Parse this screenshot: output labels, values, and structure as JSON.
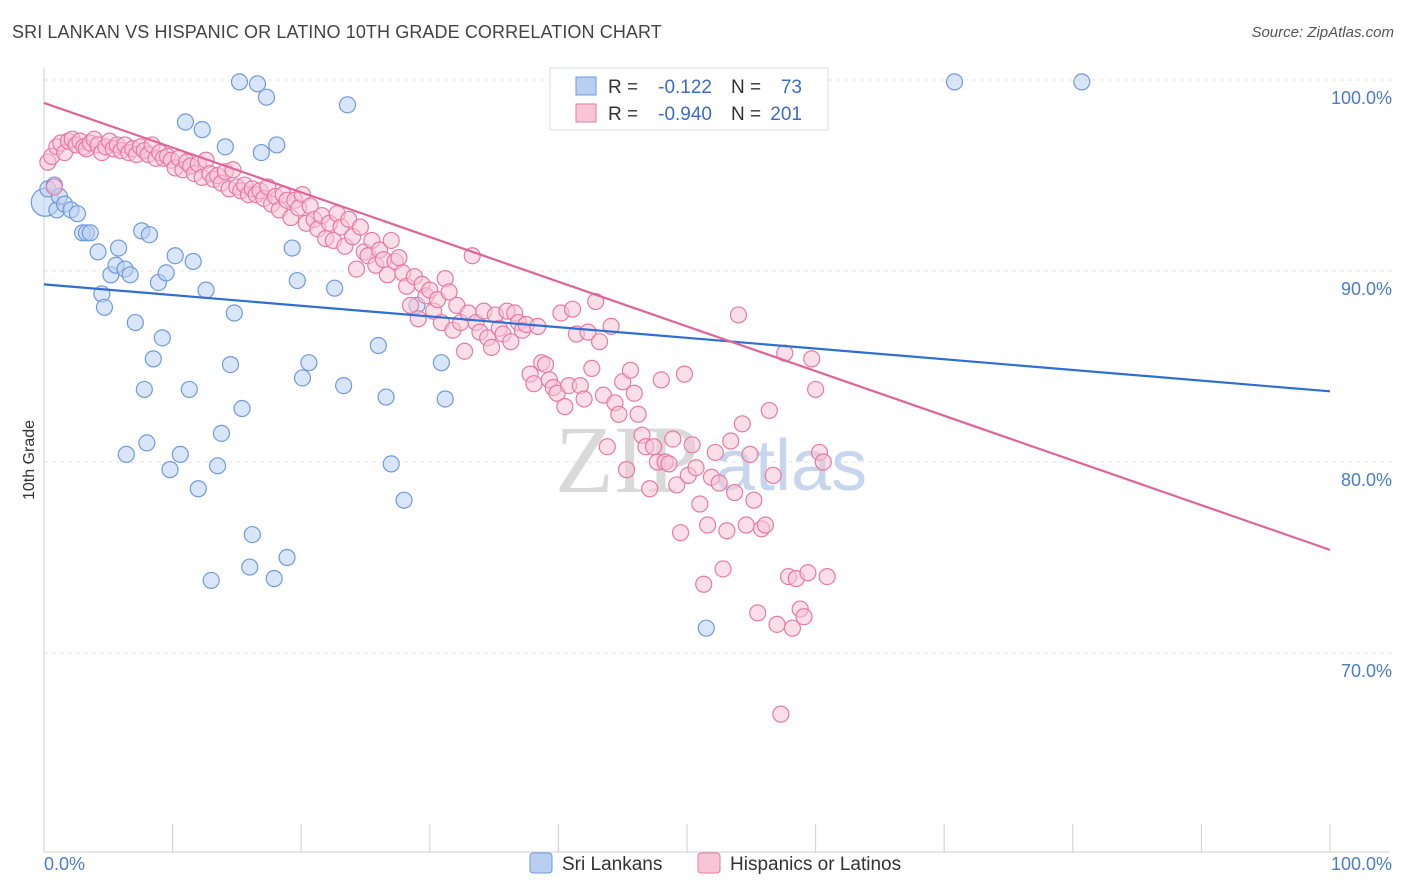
{
  "title": "SRI LANKAN VS HISPANIC OR LATINO 10TH GRADE CORRELATION CHART",
  "source": "Source: ZipAtlas.com",
  "chart_data": {
    "type": "scatter",
    "xlabel": "",
    "ylabel": "10th Grade",
    "xlim": [
      0,
      100
    ],
    "ylim": [
      60,
      102
    ],
    "x_tick_labels": [
      "0.0%",
      "100.0%"
    ],
    "y_ticks": [
      100,
      90,
      80,
      70
    ],
    "y_tick_labels": [
      "100.0%",
      "90.0%",
      "80.0%",
      "70.0%"
    ],
    "watermark": [
      "ZIP",
      "atlas"
    ],
    "legend_stats": [
      {
        "r_label": "R =",
        "r": "-0.122",
        "n_label": "N =",
        "n": "73"
      },
      {
        "r_label": "R =",
        "r": "-0.940",
        "n_label": "N =",
        "n": "201"
      }
    ],
    "series": [
      {
        "name": "Sri Lankans",
        "color": "#6f9ae0",
        "fill": "#b9cff2",
        "trend": {
          "x": [
            0,
            100
          ],
          "y": [
            89.3,
            83.7
          ]
        },
        "points": [
          [
            0.1,
            93.6
          ],
          [
            0.3,
            94.3
          ],
          [
            0.8,
            94.5
          ],
          [
            1.0,
            93.2
          ],
          [
            1.2,
            93.9
          ],
          [
            1.6,
            93.5
          ],
          [
            2.1,
            93.2
          ],
          [
            2.6,
            93.0
          ],
          [
            3.0,
            92.0
          ],
          [
            3.3,
            92.0
          ],
          [
            3.6,
            92.0
          ],
          [
            4.2,
            91.0
          ],
          [
            4.5,
            88.8
          ],
          [
            4.7,
            88.1
          ],
          [
            5.2,
            89.8
          ],
          [
            5.6,
            90.3
          ],
          [
            5.8,
            91.2
          ],
          [
            6.3,
            90.1
          ],
          [
            6.4,
            80.4
          ],
          [
            6.7,
            89.8
          ],
          [
            7.1,
            87.3
          ],
          [
            7.6,
            92.1
          ],
          [
            7.8,
            83.8
          ],
          [
            8.0,
            81.0
          ],
          [
            8.2,
            91.9
          ],
          [
            8.5,
            85.4
          ],
          [
            8.9,
            89.4
          ],
          [
            9.2,
            86.5
          ],
          [
            9.5,
            89.9
          ],
          [
            9.8,
            79.6
          ],
          [
            10.2,
            90.8
          ],
          [
            10.6,
            80.4
          ],
          [
            11.0,
            97.8
          ],
          [
            11.3,
            83.8
          ],
          [
            11.6,
            90.5
          ],
          [
            12.0,
            78.6
          ],
          [
            12.3,
            97.4
          ],
          [
            12.6,
            89.0
          ],
          [
            13.0,
            73.8
          ],
          [
            13.5,
            79.8
          ],
          [
            13.8,
            81.5
          ],
          [
            14.1,
            96.5
          ],
          [
            14.5,
            85.1
          ],
          [
            14.8,
            87.8
          ],
          [
            15.2,
            99.9
          ],
          [
            15.4,
            82.8
          ],
          [
            16.0,
            74.5
          ],
          [
            16.2,
            76.2
          ],
          [
            16.6,
            99.8
          ],
          [
            16.9,
            96.2
          ],
          [
            17.3,
            99.1
          ],
          [
            17.9,
            73.9
          ],
          [
            18.1,
            96.6
          ],
          [
            18.9,
            75.0
          ],
          [
            19.3,
            91.2
          ],
          [
            19.7,
            89.5
          ],
          [
            20.1,
            84.4
          ],
          [
            20.6,
            85.2
          ],
          [
            22.6,
            89.1
          ],
          [
            23.3,
            84.0
          ],
          [
            23.6,
            98.7
          ],
          [
            26.0,
            86.1
          ],
          [
            26.6,
            83.4
          ],
          [
            27.0,
            79.9
          ],
          [
            28.0,
            78.0
          ],
          [
            29.0,
            88.2
          ],
          [
            30.9,
            85.2
          ],
          [
            31.2,
            83.3
          ],
          [
            51.5,
            71.3
          ],
          [
            70.8,
            99.9
          ],
          [
            80.7,
            99.9
          ]
        ]
      },
      {
        "name": "Hispanics or Latinos",
        "color": "#e87aa3",
        "fill": "#f7c5d6",
        "trend": {
          "x": [
            0,
            100
          ],
          "y": [
            98.8,
            75.4
          ]
        },
        "points": [
          [
            0.3,
            95.7
          ],
          [
            0.6,
            96.0
          ],
          [
            0.8,
            94.4
          ],
          [
            1.0,
            96.5
          ],
          [
            1.3,
            96.7
          ],
          [
            1.6,
            96.2
          ],
          [
            1.9,
            96.8
          ],
          [
            2.2,
            96.9
          ],
          [
            2.5,
            96.6
          ],
          [
            2.8,
            96.8
          ],
          [
            3.1,
            96.5
          ],
          [
            3.3,
            96.4
          ],
          [
            3.6,
            96.7
          ],
          [
            3.9,
            96.9
          ],
          [
            4.2,
            96.6
          ],
          [
            4.5,
            96.2
          ],
          [
            4.8,
            96.5
          ],
          [
            5.1,
            96.8
          ],
          [
            5.4,
            96.4
          ],
          [
            5.7,
            96.6
          ],
          [
            6.0,
            96.3
          ],
          [
            6.3,
            96.6
          ],
          [
            6.6,
            96.2
          ],
          [
            6.9,
            96.4
          ],
          [
            7.2,
            96.1
          ],
          [
            7.5,
            96.5
          ],
          [
            7.8,
            96.3
          ],
          [
            8.1,
            96.1
          ],
          [
            8.4,
            96.6
          ],
          [
            8.7,
            95.9
          ],
          [
            9.0,
            96.2
          ],
          [
            9.3,
            95.9
          ],
          [
            9.6,
            96.0
          ],
          [
            9.9,
            95.8
          ],
          [
            10.2,
            95.4
          ],
          [
            10.5,
            95.9
          ],
          [
            10.8,
            95.3
          ],
          [
            11.1,
            95.7
          ],
          [
            11.4,
            95.5
          ],
          [
            11.7,
            95.1
          ],
          [
            12.0,
            95.6
          ],
          [
            12.3,
            94.9
          ],
          [
            12.6,
            95.8
          ],
          [
            12.9,
            95.1
          ],
          [
            13.2,
            94.8
          ],
          [
            13.5,
            95.0
          ],
          [
            13.8,
            94.6
          ],
          [
            14.1,
            95.2
          ],
          [
            14.4,
            94.3
          ],
          [
            14.7,
            95.3
          ],
          [
            15.0,
            94.4
          ],
          [
            15.3,
            94.2
          ],
          [
            15.6,
            94.5
          ],
          [
            15.9,
            94.0
          ],
          [
            16.2,
            94.3
          ],
          [
            16.5,
            94.0
          ],
          [
            16.8,
            94.2
          ],
          [
            17.1,
            93.8
          ],
          [
            17.4,
            94.4
          ],
          [
            17.7,
            93.5
          ],
          [
            18.0,
            93.9
          ],
          [
            18.3,
            93.2
          ],
          [
            18.6,
            94.0
          ],
          [
            18.9,
            93.7
          ],
          [
            19.2,
            92.8
          ],
          [
            19.5,
            93.7
          ],
          [
            19.8,
            93.3
          ],
          [
            20.1,
            94.0
          ],
          [
            20.4,
            92.5
          ],
          [
            20.7,
            93.4
          ],
          [
            21.0,
            92.7
          ],
          [
            21.3,
            92.2
          ],
          [
            21.6,
            92.9
          ],
          [
            21.9,
            91.7
          ],
          [
            22.2,
            92.5
          ],
          [
            22.5,
            91.6
          ],
          [
            22.8,
            93.0
          ],
          [
            23.1,
            92.3
          ],
          [
            23.4,
            91.3
          ],
          [
            23.7,
            92.7
          ],
          [
            24.0,
            91.8
          ],
          [
            24.3,
            90.1
          ],
          [
            24.6,
            92.3
          ],
          [
            24.9,
            91.0
          ],
          [
            25.2,
            90.8
          ],
          [
            25.5,
            91.6
          ],
          [
            25.8,
            90.3
          ],
          [
            26.1,
            91.1
          ],
          [
            26.4,
            90.6
          ],
          [
            26.7,
            89.8
          ],
          [
            27.0,
            91.6
          ],
          [
            27.3,
            90.5
          ],
          [
            27.6,
            90.7
          ],
          [
            27.9,
            89.9
          ],
          [
            28.2,
            89.2
          ],
          [
            28.5,
            88.2
          ],
          [
            28.8,
            89.7
          ],
          [
            29.1,
            87.5
          ],
          [
            29.4,
            89.3
          ],
          [
            29.7,
            88.7
          ],
          [
            30.0,
            89.0
          ],
          [
            30.3,
            87.9
          ],
          [
            30.6,
            88.5
          ],
          [
            30.9,
            87.3
          ],
          [
            31.2,
            89.6
          ],
          [
            31.5,
            88.9
          ],
          [
            31.8,
            86.9
          ],
          [
            32.1,
            88.2
          ],
          [
            32.4,
            87.3
          ],
          [
            32.7,
            85.8
          ],
          [
            33.0,
            87.8
          ],
          [
            33.3,
            90.8
          ],
          [
            33.6,
            87.3
          ],
          [
            33.9,
            86.8
          ],
          [
            34.2,
            87.9
          ],
          [
            34.5,
            86.5
          ],
          [
            34.8,
            86.0
          ],
          [
            35.1,
            87.7
          ],
          [
            35.4,
            87.0
          ],
          [
            35.7,
            86.7
          ],
          [
            36.0,
            87.9
          ],
          [
            36.3,
            86.3
          ],
          [
            36.6,
            87.8
          ],
          [
            36.9,
            87.3
          ],
          [
            37.2,
            86.9
          ],
          [
            37.5,
            87.2
          ],
          [
            37.8,
            84.6
          ],
          [
            38.1,
            84.1
          ],
          [
            38.4,
            87.1
          ],
          [
            38.7,
            85.2
          ],
          [
            39.0,
            85.1
          ],
          [
            39.3,
            84.3
          ],
          [
            39.6,
            83.9
          ],
          [
            39.9,
            83.6
          ],
          [
            40.2,
            87.8
          ],
          [
            40.5,
            82.9
          ],
          [
            40.8,
            84.0
          ],
          [
            41.1,
            88.0
          ],
          [
            41.4,
            86.7
          ],
          [
            41.7,
            84.0
          ],
          [
            42.0,
            83.3
          ],
          [
            42.3,
            86.8
          ],
          [
            42.6,
            84.9
          ],
          [
            42.9,
            88.4
          ],
          [
            43.2,
            86.3
          ],
          [
            43.5,
            83.5
          ],
          [
            43.8,
            80.8
          ],
          [
            44.1,
            87.1
          ],
          [
            44.4,
            83.1
          ],
          [
            44.7,
            82.5
          ],
          [
            45.0,
            84.2
          ],
          [
            45.3,
            79.6
          ],
          [
            45.6,
            84.8
          ],
          [
            45.9,
            83.6
          ],
          [
            46.2,
            82.5
          ],
          [
            46.5,
            81.4
          ],
          [
            46.8,
            80.8
          ],
          [
            47.1,
            78.6
          ],
          [
            47.4,
            80.8
          ],
          [
            47.7,
            80.0
          ],
          [
            48.0,
            84.3
          ],
          [
            48.3,
            80.0
          ],
          [
            48.6,
            79.9
          ],
          [
            48.9,
            81.2
          ],
          [
            49.2,
            78.8
          ],
          [
            49.5,
            76.3
          ],
          [
            49.8,
            84.6
          ],
          [
            50.1,
            79.3
          ],
          [
            50.4,
            80.9
          ],
          [
            50.7,
            79.7
          ],
          [
            51.0,
            77.8
          ],
          [
            51.3,
            73.6
          ],
          [
            51.6,
            76.7
          ],
          [
            51.9,
            79.2
          ],
          [
            52.2,
            80.5
          ],
          [
            52.5,
            78.9
          ],
          [
            52.8,
            74.4
          ],
          [
            53.1,
            76.4
          ],
          [
            53.4,
            81.1
          ],
          [
            53.7,
            78.4
          ],
          [
            54.0,
            87.7
          ],
          [
            54.3,
            82.0
          ],
          [
            54.6,
            76.7
          ],
          [
            54.9,
            80.4
          ],
          [
            55.2,
            78.0
          ],
          [
            55.5,
            72.1
          ],
          [
            55.8,
            76.5
          ],
          [
            56.1,
            76.7
          ],
          [
            56.4,
            82.7
          ],
          [
            56.7,
            79.3
          ],
          [
            57.0,
            71.5
          ],
          [
            57.3,
            66.8
          ],
          [
            57.6,
            85.7
          ],
          [
            57.9,
            74.0
          ],
          [
            58.2,
            71.3
          ],
          [
            58.5,
            73.9
          ],
          [
            58.8,
            72.3
          ],
          [
            59.1,
            71.9
          ],
          [
            59.4,
            74.2
          ],
          [
            59.7,
            85.4
          ],
          [
            60.0,
            83.8
          ],
          [
            60.3,
            80.5
          ],
          [
            60.6,
            80.0
          ],
          [
            60.9,
            74.0
          ]
        ]
      }
    ]
  }
}
